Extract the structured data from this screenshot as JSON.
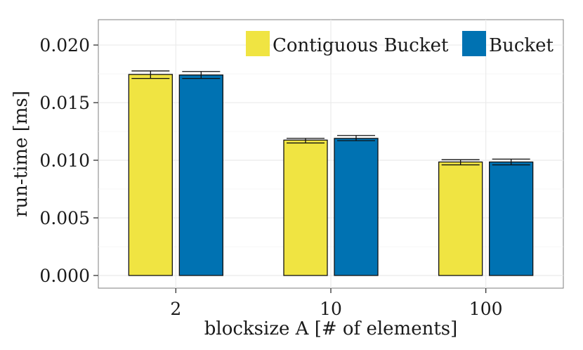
{
  "chart_data": {
    "type": "bar",
    "categories": [
      "2",
      "10",
      "100"
    ],
    "series": [
      {
        "name": "Contiguous Bucket",
        "color": "#f0e442",
        "values": [
          0.01745,
          0.01175,
          0.00985
        ],
        "error_low": [
          0.0171,
          0.0115,
          0.0096
        ],
        "error_high": [
          0.01775,
          0.0119,
          0.01005
        ]
      },
      {
        "name": "Bucket",
        "color": "#0072b2",
        "values": [
          0.0174,
          0.0119,
          0.00985
        ],
        "error_low": [
          0.0171,
          0.0117,
          0.0096
        ],
        "error_high": [
          0.0177,
          0.01215,
          0.0101
        ]
      }
    ],
    "yticks": [
      "0.000",
      "0.005",
      "0.010",
      "0.015",
      "0.020"
    ],
    "ylim": [
      -0.0011,
      0.0222
    ],
    "xlabel": "blocksize A [# of elements]",
    "ylabel": "run-time [ms]",
    "grid": true,
    "legend_position": "top-right"
  }
}
